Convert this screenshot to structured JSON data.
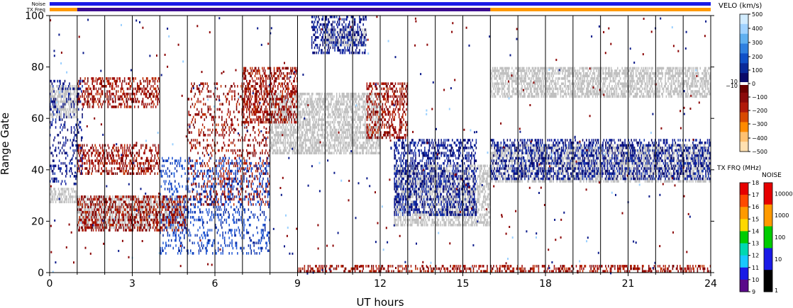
{
  "header": {
    "noise_label": "Noise",
    "txfreq_label": "TX Freq"
  },
  "status_bars": {
    "noise_color": "#1a1ae6",
    "txfreq_segments": [
      {
        "from": 0,
        "to": 1,
        "color": "#ff9a00"
      },
      {
        "from": 1,
        "to": 16,
        "color": "#3b0a8f"
      },
      {
        "from": 16,
        "to": 24,
        "color": "#ff9a00"
      }
    ]
  },
  "chart_data": {
    "type": "heatmap",
    "title": "",
    "xlabel": "UT hours",
    "ylabel": "Range Gate",
    "xlim": [
      0,
      24
    ],
    "ylim": [
      0,
      100
    ],
    "xticks": [
      "0",
      "3",
      "6",
      "9",
      "12",
      "15",
      "18",
      "21",
      "24"
    ],
    "xtick_values": [
      0,
      3,
      6,
      9,
      12,
      15,
      18,
      21,
      24
    ],
    "yticks": [
      "0",
      "20",
      "40",
      "60",
      "80",
      "100"
    ],
    "ytick_values": [
      0,
      20,
      40,
      60,
      80,
      100
    ],
    "scan_boundaries_hours": [
      1,
      2,
      3,
      4,
      5,
      6,
      7,
      8,
      9,
      10,
      11,
      12,
      13,
      14,
      15,
      16,
      17,
      18,
      19,
      20,
      21,
      22,
      23
    ],
    "ground_scatter_color": "#c0c0c0",
    "echo_regions": [
      {
        "kind": "ground",
        "x": [
          0,
          1
        ],
        "y": [
          27,
          33
        ]
      },
      {
        "kind": "ground",
        "x": [
          1,
          5
        ],
        "y": [
          17,
          30
        ]
      },
      {
        "kind": "ground",
        "x": [
          0,
          1
        ],
        "y": [
          60,
          73
        ]
      },
      {
        "kind": "ground",
        "x": [
          8,
          12
        ],
        "y": [
          46,
          70
        ]
      },
      {
        "kind": "ground",
        "x": [
          12.5,
          16
        ],
        "y": [
          18,
          42
        ]
      },
      {
        "kind": "ground",
        "x": [
          16,
          24
        ],
        "y": [
          35,
          50
        ]
      },
      {
        "kind": "ground",
        "x": [
          10,
          11.5
        ],
        "y": [
          88,
          95
        ]
      },
      {
        "kind": "ground",
        "x": [
          16,
          24
        ],
        "y": [
          68,
          80
        ]
      },
      {
        "kind": "velocity",
        "x": [
          1,
          5
        ],
        "y": [
          16,
          30
        ],
        "velocity_ms": -250
      },
      {
        "kind": "velocity",
        "x": [
          1,
          4
        ],
        "y": [
          38,
          50
        ],
        "velocity_ms": -200
      },
      {
        "kind": "velocity",
        "x": [
          1,
          4
        ],
        "y": [
          64,
          76
        ],
        "velocity_ms": -180
      },
      {
        "kind": "velocity",
        "x": [
          5,
          8
        ],
        "y": [
          26,
          74
        ],
        "velocity_ms": -220
      },
      {
        "kind": "velocity",
        "x": [
          7,
          9
        ],
        "y": [
          58,
          80
        ],
        "velocity_ms": -230
      },
      {
        "kind": "velocity",
        "x": [
          11.5,
          13
        ],
        "y": [
          52,
          74
        ],
        "velocity_ms": -260
      },
      {
        "kind": "velocity",
        "x": [
          4,
          8
        ],
        "y": [
          7,
          45
        ],
        "velocity_ms": 200
      },
      {
        "kind": "velocity",
        "x": [
          12.5,
          15.5
        ],
        "y": [
          22,
          52
        ],
        "velocity_ms": 150
      },
      {
        "kind": "velocity",
        "x": [
          16,
          24
        ],
        "y": [
          36,
          52
        ],
        "velocity_ms": 120
      },
      {
        "kind": "velocity",
        "x": [
          0,
          1.2
        ],
        "y": [
          34,
          75
        ],
        "velocity_ms": 140
      },
      {
        "kind": "velocity",
        "x": [
          9.5,
          11.5
        ],
        "y": [
          85,
          100
        ],
        "velocity_ms": 160
      },
      {
        "kind": "velocity",
        "x": [
          9,
          24
        ],
        "y": [
          0,
          3
        ],
        "velocity_ms": -200
      }
    ]
  },
  "velocity_scale": {
    "title": "VELO (km/s)",
    "ticks": [
      "500",
      "400",
      "300",
      "200",
      "100",
      "0",
      "10",
      "−10",
      "−100",
      "−200",
      "−300",
      "−400",
      "−500"
    ],
    "colors_top_to_bottom": [
      "#d2ecff",
      "#a0d2ff",
      "#5fb0f0",
      "#2f80e0",
      "#1050c8",
      "#0a2a9a",
      "#0a0a6a",
      "#6a0000",
      "#8a0a0a",
      "#b01a0a",
      "#d84a00",
      "#ff8a00",
      "#ffc070",
      "#ffe0b0"
    ]
  },
  "txfreq_scale": {
    "title": "TX FRQ (MHz)",
    "ticks": [
      "18",
      "17",
      "16",
      "15",
      "14",
      "13",
      "12",
      "11",
      "10",
      "9"
    ],
    "colors_top_to_bottom": [
      "#e60000",
      "#ff4a00",
      "#ff9a00",
      "#ffd800",
      "#00cc00",
      "#00d8b0",
      "#18c8ff",
      "#1a1ae6",
      "#5a0a8a",
      "#000000"
    ]
  },
  "noise_scale": {
    "title": "NOISE",
    "ticks": [
      "10000",
      "1000",
      "100",
      "10",
      "1"
    ],
    "colors_top_to_bottom": [
      "#e60000",
      "#ff9a00",
      "#00cc00",
      "#1a1ae6",
      "#000000"
    ]
  }
}
